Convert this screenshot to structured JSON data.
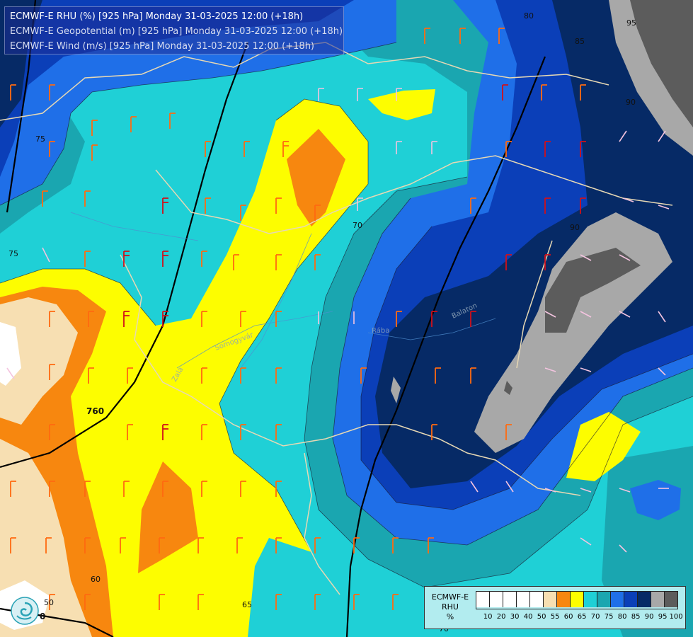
{
  "title": {
    "line1": "ECMWF-E RHU (%) [925 hPa] Monday 31-03-2025 12:00 (+18h)",
    "line2": "ECMWF-E Geopotential (m) [925 hPa] Monday 31-03-2025 12:00 (+18h)",
    "line3": "ECMWF-E Wind (m/s) [925 hPa] Monday 31-03-2025 12:00 (+18h)"
  },
  "legend": {
    "model": "ECMWF-E",
    "variable": "RHU",
    "unit": "%",
    "classes": [
      {
        "label": "10",
        "color": "#ffffff"
      },
      {
        "label": "20",
        "color": "#ffffff"
      },
      {
        "label": "30",
        "color": "#ffffff"
      },
      {
        "label": "40",
        "color": "#ffffff"
      },
      {
        "label": "50",
        "color": "#ffffff"
      },
      {
        "label": "55",
        "color": "#f7dfb2"
      },
      {
        "label": "60",
        "color": "#f7870f"
      },
      {
        "label": "65",
        "color": "#fdfd00"
      },
      {
        "label": "70",
        "color": "#1fd0d6"
      },
      {
        "label": "75",
        "color": "#1aa6b0"
      },
      {
        "label": "80",
        "color": "#1f6fe8"
      },
      {
        "label": "85",
        "color": "#0b3fb8"
      },
      {
        "label": "90",
        "color": "#062a66"
      },
      {
        "label": "95",
        "color": "#a8a8a8"
      },
      {
        "label": "100",
        "color": "#5c5c5c"
      }
    ]
  },
  "contour_labels": [
    {
      "text": "80"
    },
    {
      "text": "85"
    },
    {
      "text": "95"
    },
    {
      "text": "90"
    },
    {
      "text": "90"
    },
    {
      "text": "75"
    },
    {
      "text": "70"
    },
    {
      "text": "760"
    },
    {
      "text": "60"
    },
    {
      "text": "50"
    },
    {
      "text": "65"
    },
    {
      "text": "0"
    },
    {
      "text": "75"
    },
    {
      "text": "70"
    }
  ],
  "place_labels": [
    "Somogyvár",
    "Zala",
    "Rába",
    "Balaton"
  ]
}
